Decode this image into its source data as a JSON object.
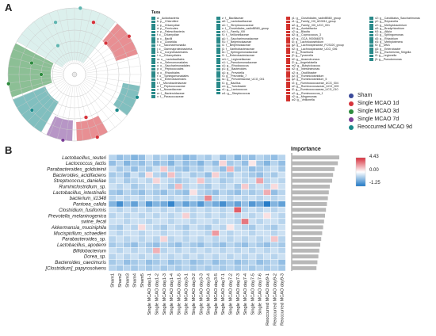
{
  "panels": {
    "a": "A",
    "b": "B"
  },
  "taxa": {
    "header": "Taxa",
    "columns": [
      [
        {
          "label": "a: _Acidobacteria",
          "color": "#2a8a8a"
        },
        {
          "label": "b: p__Chloroflexi",
          "color": "#2a8a8a"
        },
        {
          "label": "c: p__Chlamydiae",
          "color": "#2a8a8a"
        },
        {
          "label": "d: p__Firmicutes",
          "color": "#2a8a8a"
        },
        {
          "label": "e: p__Patescibacteria",
          "color": "#2a8a8a"
        },
        {
          "label": "f: c__Chlamydiae",
          "color": "#2a8a8a"
        },
        {
          "label": "g: c__Bacilli",
          "color": "#2a8a8a"
        },
        {
          "label": "h: c__Clostridia",
          "color": "#2a8a8a"
        },
        {
          "label": "i: c__Saccharimonadia",
          "color": "#2a8a8a"
        },
        {
          "label": "j: c__Gammaproteobacteria",
          "color": "#2a8a8a"
        },
        {
          "label": "k: o__Corynebacteriales",
          "color": "#2a8a8a"
        },
        {
          "label": "l: o__Chlamydiales",
          "color": "#2a8a8a"
        },
        {
          "label": "m: o__Lactobacillales",
          "color": "#2a8a8a"
        },
        {
          "label": "n: o__Selenomonadales",
          "color": "#2a8a8a"
        },
        {
          "label": "o: o__Saccharimonadales",
          "color": "#2a8a8a"
        },
        {
          "label": "p: o__Peptococcales",
          "color": "#2a8a8a"
        },
        {
          "label": "q: o__Rhizobiales",
          "color": "#2a8a8a"
        },
        {
          "label": "r: o__Sphingomonadales",
          "color": "#2a8a8a"
        },
        {
          "label": "s: o__Enterobacterales",
          "color": "#2a8a8a"
        },
        {
          "label": "t: f__Microbacteriaceae",
          "color": "#2a8a8a"
        },
        {
          "label": "u: f__Peptococcaceae",
          "color": "#2a8a8a"
        },
        {
          "label": "v: f__Nocardiaceae",
          "color": "#2a8a8a"
        },
        {
          "label": "w: f__Bacteroidaceae",
          "color": "#2a8a8a"
        },
        {
          "label": "x: f__Paracoccaceae",
          "color": "#2a8a8a"
        }
      ],
      [
        {
          "label": "z: f__Bacillaceae",
          "color": "#2a8a8a"
        },
        {
          "label": "a0: f__Lactobacillaceae",
          "color": "#2a8a8a"
        },
        {
          "label": "a1: f__Streptococcaceae",
          "color": "#2a8a8a"
        },
        {
          "label": "c: f__Clostridiales_vadinBB60_group",
          "color": "#2a8a8a"
        },
        {
          "label": "e1: f__Family_XIII",
          "color": "#2a8a8a"
        },
        {
          "label": "f1: f__Veillonellaceae",
          "color": "#2a8a8a"
        },
        {
          "label": "g1: f__Saccharimonadaceae",
          "color": "#2a8a8a"
        },
        {
          "label": "h1: f__Beijerinckiaceae",
          "color": "#2a8a8a"
        },
        {
          "label": "i1: f__Beijerinckiaceae",
          "color": "#2a8a8a"
        },
        {
          "label": "j1: f__Xanthobacteraceae",
          "color": "#2a8a8a"
        },
        {
          "label": "k1: f__Sphingomonadaceae",
          "color": "#2a8a8a"
        },
        {
          "label": "l1: f__Enterobacteriaceae",
          "color": "#2a8a8a"
        },
        {
          "label": "m1: f__Legionellaceae",
          "color": "#2a8a8a"
        },
        {
          "label": "n1: f__Pseudomonadaceae",
          "color": "#2a8a8a"
        },
        {
          "label": "o1: g__Rhodococcus",
          "color": "#2a8a8a"
        },
        {
          "label": "p1: g__Bacteroides",
          "color": "#2a8a8a"
        },
        {
          "label": "q1: g__Prevotella",
          "color": "#2a8a8a"
        },
        {
          "label": "r1: g__Prevotella_7",
          "color": "#2a8a8a"
        },
        {
          "label": "s1: g__Prevotellaceae_UCG_001",
          "color": "#2a8a8a"
        },
        {
          "label": "t1: g__Bacillus",
          "color": "#2a8a8a"
        },
        {
          "label": "u1: g__Turicibacter",
          "color": "#2a8a8a"
        },
        {
          "label": "v1: g__Lactococcus",
          "color": "#2a8a8a"
        },
        {
          "label": "w1: g__Streptococcus",
          "color": "#2a8a8a"
        }
      ],
      [
        {
          "label": "y1: g__Clostridiales_vadinBB60_group",
          "color": "#d2322d"
        },
        {
          "label": "z1: g__Family_XIII_AD3011_group",
          "color": "#d2322d"
        },
        {
          "label": "a2: g__Family_XIII_UCG_001",
          "color": "#d2322d"
        },
        {
          "label": "b2: g__Acetatifactor",
          "color": "#d2322d"
        },
        {
          "label": "c2: g__Blautia",
          "color": "#d2322d"
        },
        {
          "label": "d2: g__Coprococcus_3",
          "color": "#d2322d"
        },
        {
          "label": "e2: g__GCA_900066575",
          "color": "#d2322d"
        },
        {
          "label": "f2: g__Lachnoclostridium",
          "color": "#d2322d"
        },
        {
          "label": "g2: g__Lachnospiraceae_FCS020_group",
          "color": "#d2322d"
        },
        {
          "label": "h2: g__Lachnospiraceae_UCG_006",
          "color": "#d2322d"
        },
        {
          "label": "i2: g__Roseburia",
          "color": "#d2322d"
        },
        {
          "label": "j2: g__Tyzzerella",
          "color": "#d2322d"
        },
        {
          "label": "k2: g__Anaerotruncus",
          "color": "#d2322d"
        },
        {
          "label": "l2: g__Angelakisella",
          "color": "#d2322d"
        },
        {
          "label": "m2: g__Butyricicoccus",
          "color": "#d2322d"
        },
        {
          "label": "n2: g__Intestinimonas",
          "color": "#d2322d"
        },
        {
          "label": "o2: g__Oscillibacter",
          "color": "#d2322d"
        },
        {
          "label": "p2: g__Ruminiclostridium",
          "color": "#d2322d"
        },
        {
          "label": "q2: g__Ruminiclostridium_5",
          "color": "#d2322d"
        },
        {
          "label": "r2: g__Ruminococcaceae_UCG_004",
          "color": "#d2322d"
        },
        {
          "label": "s2: g__Ruminococcaceae_UCG_009",
          "color": "#d2322d"
        },
        {
          "label": "t2: g__Ruminococcaceae_UCG_010",
          "color": "#d2322d"
        },
        {
          "label": "u2: g__Ruminococcus_1",
          "color": "#d2322d"
        },
        {
          "label": "v2: g__Megamonas",
          "color": "#d2322d"
        },
        {
          "label": "w2: g__Veillonella",
          "color": "#d2322d"
        }
      ],
      [
        {
          "label": "x2: g__Candidatus_Saccharimonas",
          "color": "#2a8a8a"
        },
        {
          "label": "y2: g__Reyranella",
          "color": "#2a8a8a"
        },
        {
          "label": "z2: g__Methylobacterium",
          "color": "#2a8a8a"
        },
        {
          "label": "a3: g__Bradyrhizobium",
          "color": "#2a8a8a"
        },
        {
          "label": "b3: g__Afipia",
          "color": "#2a8a8a"
        },
        {
          "label": "c3: g__Sphingomonas",
          "color": "#2a8a8a"
        },
        {
          "label": "d3: g__Rhizobium",
          "color": "#2a8a8a"
        },
        {
          "label": "e3: g__Methylotenera",
          "color": "#2a8a8a"
        },
        {
          "label": "f3: g__MM1",
          "color": "#2a8a8a"
        },
        {
          "label": "g3: g__Enterobacter",
          "color": "#2a8a8a"
        },
        {
          "label": "h3: g__Escherichia_Shigella",
          "color": "#2a8a8a"
        },
        {
          "label": "i3: g__Legionella",
          "color": "#2a8a8a"
        },
        {
          "label": "j3: g__Pseudomonas",
          "color": "#2a8a8a"
        }
      ]
    ]
  },
  "groups_legend": [
    {
      "label": "Sham",
      "color": "#3a4a9a"
    },
    {
      "label": "Single MCAO 1d",
      "color": "#d6333b"
    },
    {
      "label": "Single MCAO 3d",
      "color": "#2e8b3e"
    },
    {
      "label": "Single MCAO 7d",
      "color": "#7b3f98"
    },
    {
      "label": "Reoccurred   MCAO 9d",
      "color": "#1a8a8a"
    }
  ],
  "heatmap": {
    "importance_title": "Importance",
    "scale": {
      "max": "4.43",
      "mid": "0.00",
      "min": "-1.25"
    },
    "species": [
      "Lactobacillus_reuteri",
      "Lactococcus_lactis",
      "Parabacteroides_goldsteinii",
      "Bacteroides_acidifaciens",
      "Streptococcus_danieliae",
      "Ruminiclostridium_sp.",
      "Lactobacillus_intestinalis",
      "bacterium_ii1348",
      "Pantoea_calida",
      "Clostridium_fusiformis",
      "Prevotella_melaninogenica",
      "swine_fecal",
      "Akkermansia_muciniphila",
      "Mucispirillum_schaedleri",
      "Parabacteroides_sp.",
      "Lactobacillus_apodemi",
      "Bifidobacterium",
      "Dorea_sp.",
      "Bacteroides_caecimuris",
      "[Clostridium]_papyrosolvens"
    ],
    "samples": [
      "Sham1",
      "Sham2",
      "Sham3",
      "Sham4",
      "Sham5",
      "Single MCAO day1-1",
      "Single MCAO day1-2",
      "Single MCAO day1-3",
      "Single MCAO day1-4",
      "Single MCAO day1-5",
      "Single MCAO day3-1",
      "Single MCAO day3-2",
      "Single MCAO day3-3",
      "Single MCAO day3-4",
      "Single MCAO day3-5",
      "Single MCAO day7-1",
      "Single MCAO day7-2",
      "Single MCAO day7-3",
      "Single MCAO day7-4",
      "Single MCAO day7-5",
      "Single MCAO day7-6",
      "Reoccurred MCAO day9-1",
      "Reoccurred MCAO day9-2",
      "Reoccurred MCAO day9-3"
    ],
    "importance": [
      1.0,
      0.97,
      0.9,
      0.87,
      0.85,
      0.8,
      0.78,
      0.76,
      0.74,
      0.72,
      0.7,
      0.68,
      0.66,
      0.64,
      0.62,
      0.6,
      0.58,
      0.56,
      0.54,
      0.52
    ],
    "colors": {
      "high": "#d7303d",
      "mid": "#ffffff",
      "low": "#1f78c6"
    }
  },
  "chart_data": {
    "type": "heatmap",
    "title": "",
    "rows": [
      "Lactobacillus_reuteri",
      "Lactococcus_lactis",
      "Parabacteroides_goldsteinii",
      "Bacteroides_acidifaciens",
      "Streptococcus_danieliae",
      "Ruminiclostridium_sp.",
      "Lactobacillus_intestinalis",
      "bacterium_ii1348",
      "Pantoea_calida",
      "Clostridium_fusiformis",
      "Prevotella_melaninogenica",
      "swine_fecal",
      "Akkermansia_muciniphila",
      "Mucispirillum_schaedleri",
      "Parabacteroides_sp.",
      "Lactobacillus_apodemi",
      "Bifidobacterium",
      "Dorea_sp.",
      "Bacteroides_caecimuris",
      "[Clostridium]_papyrosolvens"
    ],
    "columns": [
      "Sham1",
      "Sham2",
      "Sham3",
      "Sham4",
      "Sham5",
      "Single MCAO day1-1",
      "Single MCAO day1-2",
      "Single MCAO day1-3",
      "Single MCAO day1-4",
      "Single MCAO day1-5",
      "Single MCAO day3-1",
      "Single MCAO day3-2",
      "Single MCAO day3-3",
      "Single MCAO day3-4",
      "Single MCAO day3-5",
      "Single MCAO day7-1",
      "Single MCAO day7-2",
      "Single MCAO day7-3",
      "Single MCAO day7-4",
      "Single MCAO day7-5",
      "Single MCAO day7-6",
      "Reoccurred MCAO day9-1",
      "Reoccurred MCAO day9-2",
      "Reoccurred MCAO day9-3"
    ],
    "color_range": [
      -1.25,
      4.43
    ],
    "values": [
      [
        -0.3,
        -0.5,
        -0.4,
        -0.6,
        -0.5,
        -0.2,
        -0.4,
        -0.3,
        -0.5,
        -0.4,
        -0.6,
        -0.5,
        -0.3,
        -0.4,
        -0.2,
        -0.5,
        -0.3,
        -0.6,
        -0.4,
        -0.5,
        -0.3,
        -0.4,
        -0.5,
        -0.3
      ],
      [
        -0.5,
        -0.3,
        -0.6,
        -0.4,
        -0.5,
        -0.3,
        -0.5,
        -0.4,
        -0.6,
        -0.3,
        -0.5,
        -0.4,
        -0.6,
        -0.3,
        -0.5,
        0.6,
        -0.4,
        -0.3,
        -0.5,
        0.3,
        -0.4,
        -0.6,
        -0.3,
        -0.5
      ],
      [
        -0.2,
        -0.4,
        -0.3,
        -0.5,
        -0.3,
        -0.4,
        -0.2,
        0.8,
        -0.3,
        -0.4,
        -0.5,
        -0.3,
        -0.4,
        -0.2,
        -0.3,
        -0.5,
        1.2,
        -0.4,
        -0.3,
        -0.5,
        -0.4,
        -0.3,
        -0.2,
        -0.4
      ],
      [
        -0.4,
        -0.3,
        -0.5,
        -0.2,
        -0.4,
        0.5,
        -0.3,
        -0.4,
        1.0,
        -0.3,
        -0.2,
        -0.4,
        -0.3,
        -0.5,
        0.7,
        -0.3,
        -0.4,
        -0.2,
        -0.3,
        -0.4,
        -0.5,
        -0.3,
        -0.4,
        -0.2
      ],
      [
        -0.3,
        -0.2,
        -0.4,
        -0.3,
        -0.2,
        -0.3,
        0.6,
        -0.2,
        -0.3,
        -0.4,
        -0.3,
        -0.2,
        0.9,
        -0.3,
        -0.2,
        -0.4,
        -0.3,
        -0.2,
        -0.3,
        -0.2,
        1.6,
        -0.3,
        -0.2,
        -0.3
      ],
      [
        -0.2,
        -0.3,
        -0.2,
        -0.4,
        -0.3,
        -0.2,
        -0.3,
        -0.2,
        -0.4,
        1.1,
        -0.3,
        -0.2,
        -0.3,
        -0.4,
        -0.2,
        -0.3,
        -0.2,
        -0.4,
        0.8,
        -0.3,
        -0.2,
        -0.3,
        0.5,
        -0.2
      ],
      [
        -0.4,
        -0.5,
        -0.3,
        -0.4,
        -0.5,
        -0.3,
        -0.4,
        -0.5,
        -0.3,
        -0.4,
        -0.5,
        0.4,
        -0.3,
        -0.4,
        -0.5,
        -0.3,
        -0.4,
        -0.5,
        -0.3,
        -0.4,
        -0.3,
        1.4,
        -0.5,
        -0.3
      ],
      [
        -0.3,
        -0.2,
        -0.3,
        -0.2,
        -0.3,
        -0.2,
        -0.3,
        -0.2,
        -0.3,
        -0.2,
        -0.3,
        -0.2,
        -0.3,
        2.2,
        -0.3,
        -0.2,
        -0.3,
        -0.2,
        -0.3,
        -0.2,
        -0.3,
        -0.2,
        -0.3,
        -0.2
      ],
      [
        -0.6,
        -1.0,
        -0.5,
        -0.8,
        -0.4,
        -0.9,
        -0.6,
        -0.7,
        -1.1,
        -0.5,
        -0.8,
        -0.6,
        -0.9,
        -0.5,
        -0.7,
        -1.0,
        -0.6,
        -0.8,
        -0.5,
        -0.9,
        -0.7,
        -1.2,
        -0.6,
        -0.8
      ],
      [
        -0.2,
        -0.3,
        -0.2,
        -0.3,
        -0.2,
        -0.3,
        -0.2,
        -0.3,
        -0.2,
        -0.3,
        -0.2,
        -0.3,
        -0.2,
        -0.3,
        -0.2,
        -0.3,
        -0.2,
        3.2,
        -0.3,
        -0.2,
        -0.3,
        -0.2,
        -0.3,
        -0.2
      ],
      [
        -0.3,
        -0.2,
        -0.3,
        -0.2,
        -0.3,
        -0.2,
        -0.3,
        -0.2,
        -0.3,
        -0.2,
        0.7,
        -0.3,
        -0.2,
        -0.3,
        -0.2,
        -0.3,
        -0.2,
        -0.3,
        -0.2,
        -0.3,
        -0.2,
        0.4,
        -0.2,
        -0.3
      ],
      [
        -0.2,
        -0.2,
        -0.3,
        -0.2,
        -0.2,
        -0.3,
        -0.2,
        -0.2,
        -0.3,
        -0.2,
        -0.2,
        -0.3,
        -0.2,
        -0.2,
        -0.3,
        -0.2,
        -0.2,
        -0.3,
        2.6,
        -0.2,
        -0.3,
        -0.2,
        -0.2,
        -0.3
      ],
      [
        -0.3,
        -0.4,
        -0.2,
        -0.3,
        0.5,
        -0.2,
        -0.3,
        -0.4,
        -0.2,
        -0.3,
        -0.4,
        -0.2,
        -0.3,
        -0.4,
        -0.2,
        -0.3,
        0.3,
        -0.2,
        -0.3,
        -0.4,
        -0.2,
        -0.3,
        -0.4,
        -0.2
      ],
      [
        -0.2,
        -0.3,
        -0.2,
        -0.2,
        -0.3,
        -0.2,
        -0.2,
        -0.3,
        -0.2,
        -0.2,
        -0.3,
        -0.2,
        -0.2,
        -0.3,
        1.8,
        -0.2,
        -0.3,
        -0.2,
        -0.2,
        -0.3,
        -0.2,
        -0.2,
        -0.3,
        -0.2
      ],
      [
        -0.3,
        -0.2,
        -0.3,
        -0.2,
        -0.3,
        -0.2,
        -0.3,
        0.6,
        -0.3,
        -0.2,
        -0.3,
        -0.2,
        -0.3,
        -0.2,
        -0.3,
        -0.2,
        -0.3,
        -0.2,
        -0.3,
        -0.2,
        -0.3,
        -0.2,
        0.9,
        -0.3
      ],
      [
        -0.4,
        -0.3,
        -0.4,
        -0.5,
        -0.3,
        -0.4,
        -0.5,
        -0.3,
        -0.4,
        -0.5,
        -0.3,
        -0.4,
        -0.5,
        -0.3,
        -0.4,
        -0.5,
        -0.3,
        -0.4,
        -0.5,
        -0.3,
        -0.4,
        -0.5,
        -0.3,
        -0.4
      ],
      [
        -0.2,
        -0.3,
        -0.2,
        -0.3,
        -0.2,
        -0.3,
        1.3,
        -0.3,
        -0.2,
        -0.3,
        -0.2,
        -0.3,
        -0.2,
        -0.3,
        -0.2,
        -0.3,
        -0.2,
        -0.3,
        -0.2,
        -0.3,
        -0.2,
        -0.3,
        -0.2,
        -0.3
      ],
      [
        -0.3,
        -0.2,
        -0.3,
        -0.2,
        -0.3,
        -0.2,
        -0.3,
        -0.2,
        -0.3,
        -0.2,
        -0.3,
        -0.2,
        -0.3,
        -0.2,
        -0.3,
        -0.2,
        -0.3,
        -0.2,
        -0.3,
        -0.2,
        -0.3,
        -0.2,
        -0.3,
        -0.2
      ],
      [
        -0.4,
        -0.3,
        -0.5,
        -0.4,
        -0.3,
        -0.5,
        -0.4,
        -0.3,
        -0.5,
        -0.4,
        -0.3,
        -0.5,
        -0.4,
        -0.3,
        -0.5,
        -0.4,
        -0.3,
        -0.5,
        -0.4,
        -0.3,
        -0.5,
        -0.4,
        -0.3,
        -0.5
      ],
      [
        -0.3,
        -0.4,
        -0.3,
        -0.4,
        -0.3,
        -0.4,
        -0.3,
        -0.4,
        -0.3,
        -0.4,
        -0.3,
        -0.4,
        -0.3,
        -0.4,
        -0.3,
        -0.4,
        -0.3,
        -0.4,
        -0.3,
        -0.4,
        -0.3,
        -0.4,
        -0.3,
        -0.4
      ]
    ],
    "importance": [
      1.0,
      0.97,
      0.9,
      0.87,
      0.85,
      0.8,
      0.78,
      0.76,
      0.74,
      0.72,
      0.7,
      0.68,
      0.66,
      0.64,
      0.62,
      0.6,
      0.58,
      0.56,
      0.54,
      0.52
    ]
  }
}
